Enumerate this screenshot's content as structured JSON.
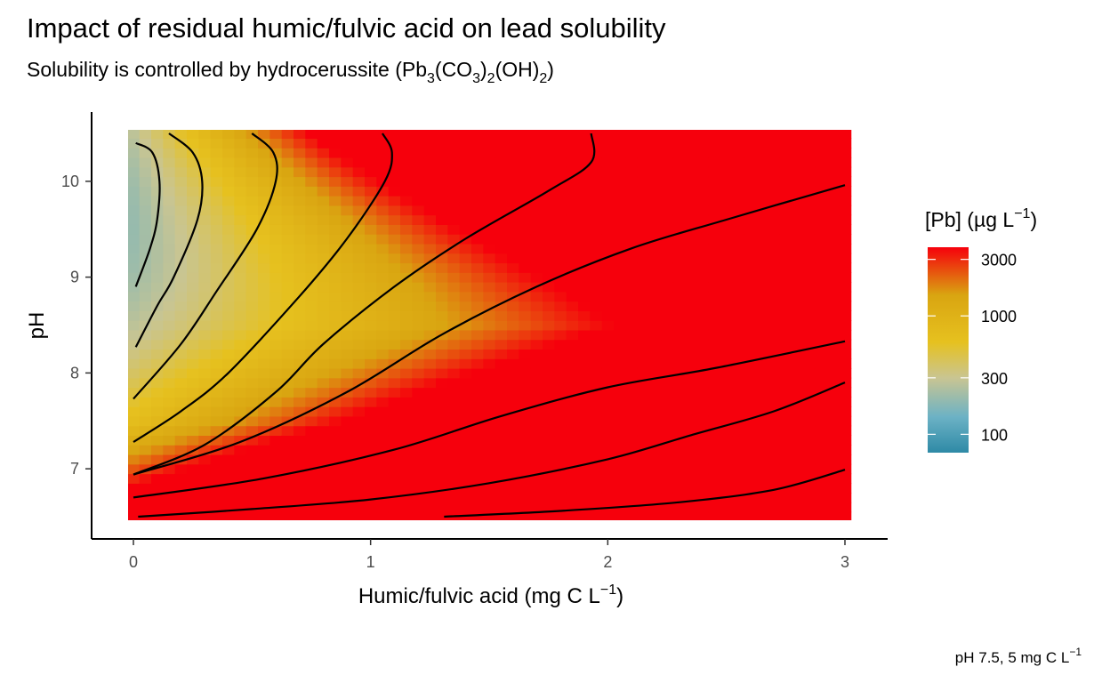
{
  "chart_data": {
    "type": "heatmap",
    "title": "Impact of residual humic/fulvic acid on lead solubility",
    "subtitle": {
      "text": "Solubility is controlled by hydrocerussite (",
      "f1": "Pb",
      "s1": "3",
      "f2": "(CO",
      "s2": "3",
      "f3": ")",
      "s3": "2",
      "f4": "(OH)",
      "s4": "2",
      "f5": ")"
    },
    "xlabel": {
      "text": "Humic/fulvic acid (mg C L",
      "sup": "−1",
      "end": ")"
    },
    "ylabel": "pH",
    "caption": {
      "text": "pH 7.5, 5 mg C L",
      "sup": "−1"
    },
    "x_ticks": [
      0,
      1,
      2,
      3
    ],
    "x_tick_labels": [
      "0",
      "1",
      "2",
      "3"
    ],
    "y_ticks": [
      7,
      8,
      9,
      10
    ],
    "y_tick_labels": [
      "7",
      "8",
      "9",
      "10"
    ],
    "xlim": [
      0,
      3
    ],
    "ylim": [
      6.5,
      10.5
    ],
    "fill_scale": "log10",
    "legend": {
      "title": {
        "text": "[Pb] (µg L",
        "sup": "−1",
        "end": ")"
      },
      "placement": "right",
      "breaks": [
        100,
        300,
        1000,
        3000
      ],
      "labels": [
        "3000",
        "1000",
        "300",
        "100"
      ],
      "range": [
        70,
        3800
      ],
      "colors": [
        {
          "value": 70,
          "color": "#2e8aa6"
        },
        {
          "value": 140,
          "color": "#6cb2c5"
        },
        {
          "value": 300,
          "color": "#c9c592"
        },
        {
          "value": 600,
          "color": "#e6c11f"
        },
        {
          "value": 1500,
          "color": "#d9a511"
        },
        {
          "value": 3800,
          "color": "#f6000c"
        }
      ]
    },
    "contours": [
      {
        "points": [
          [
            0.01,
            10.4
          ],
          [
            0.08,
            10.3
          ],
          [
            0.11,
            10.0
          ],
          [
            0.1,
            9.6
          ],
          [
            0.07,
            9.3
          ],
          [
            0.01,
            8.9
          ]
        ]
      },
      {
        "points": [
          [
            0.15,
            10.5
          ],
          [
            0.25,
            10.3
          ],
          [
            0.29,
            10.0
          ],
          [
            0.27,
            9.6
          ],
          [
            0.17,
            9.0
          ],
          [
            0.1,
            8.7
          ],
          [
            0.01,
            8.27
          ]
        ]
      },
      {
        "points": [
          [
            0.5,
            10.5
          ],
          [
            0.59,
            10.3
          ],
          [
            0.6,
            10.0
          ],
          [
            0.52,
            9.5
          ],
          [
            0.35,
            8.85
          ],
          [
            0.2,
            8.3
          ],
          [
            0.0,
            7.73
          ]
        ]
      },
      {
        "points": [
          [
            1.05,
            10.5
          ],
          [
            1.09,
            10.3
          ],
          [
            1.06,
            10.0
          ],
          [
            0.9,
            9.4
          ],
          [
            0.7,
            8.8
          ],
          [
            0.4,
            8.0
          ],
          [
            0.2,
            7.6
          ],
          [
            0.0,
            7.28
          ]
        ]
      },
      {
        "points": [
          [
            1.93,
            10.5
          ],
          [
            1.93,
            10.2
          ],
          [
            1.75,
            9.9
          ],
          [
            1.4,
            9.4
          ],
          [
            1.1,
            8.9
          ],
          [
            0.8,
            8.3
          ],
          [
            0.6,
            7.8
          ],
          [
            0.3,
            7.25
          ],
          [
            0.0,
            6.94
          ]
        ]
      },
      {
        "points": [
          [
            0.0,
            6.94
          ],
          [
            0.45,
            7.28
          ],
          [
            0.9,
            7.8
          ],
          [
            1.3,
            8.4
          ],
          [
            1.7,
            8.9
          ],
          [
            2.1,
            9.3
          ],
          [
            2.5,
            9.6
          ],
          [
            3.0,
            9.96
          ]
        ]
      },
      {
        "points": [
          [
            0.0,
            6.7
          ],
          [
            0.55,
            6.9
          ],
          [
            1.1,
            7.2
          ],
          [
            1.55,
            7.55
          ],
          [
            2.0,
            7.85
          ],
          [
            2.45,
            8.05
          ],
          [
            3.0,
            8.33
          ]
        ]
      },
      {
        "points": [
          [
            0.02,
            6.5
          ],
          [
            0.5,
            6.58
          ],
          [
            1.0,
            6.68
          ],
          [
            1.5,
            6.85
          ],
          [
            2.0,
            7.1
          ],
          [
            2.35,
            7.35
          ],
          [
            2.7,
            7.6
          ],
          [
            3.0,
            7.9
          ]
        ]
      },
      {
        "points": [
          [
            1.31,
            6.5
          ],
          [
            1.8,
            6.56
          ],
          [
            2.3,
            6.65
          ],
          [
            2.7,
            6.78
          ],
          [
            3.0,
            6.99
          ]
        ]
      }
    ]
  }
}
